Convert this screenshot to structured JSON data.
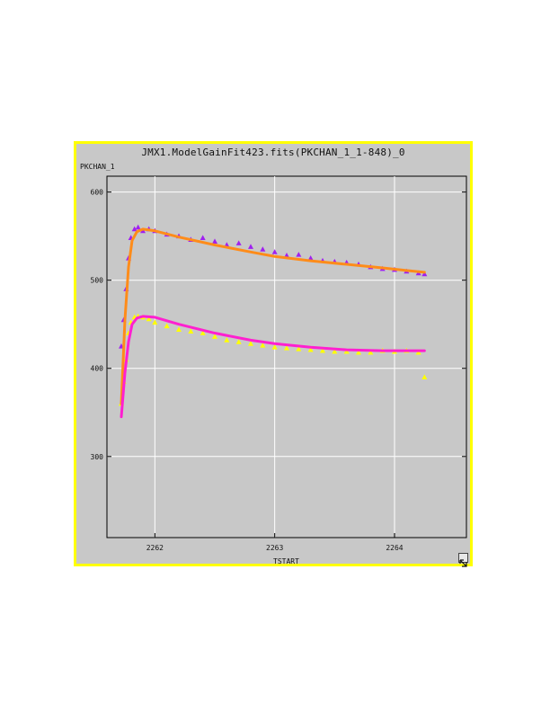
{
  "window": {
    "title": "JMX1.ModelGainFit423.fits(PKCHAN_1_1-848)_0",
    "resize_icon": "resize-corner-icon"
  },
  "chart_data": {
    "type": "scatter",
    "title": "JMX1.ModelGainFit423.fits(PKCHAN_1_1-848)_0",
    "xlabel": "TSTART",
    "ylabel": "PKCHAN_1",
    "xlim": [
      2261.6,
      2264.6
    ],
    "ylim": [
      208,
      618
    ],
    "xticks": [
      2262,
      2263,
      2264
    ],
    "yticks": [
      300,
      400,
      500,
      600
    ],
    "grid": true,
    "legend": "none",
    "series": [
      {
        "kind": "scatter",
        "marker": "triangle",
        "color": "#a020f0",
        "x": [
          2261.72,
          2261.74,
          2261.76,
          2261.78,
          2261.8,
          2261.83,
          2261.86,
          2261.9,
          2261.95,
          2262.0,
          2262.1,
          2262.2,
          2262.3,
          2262.4,
          2262.5,
          2262.6,
          2262.7,
          2262.8,
          2262.9,
          2263.0,
          2263.1,
          2263.2,
          2263.3,
          2263.4,
          2263.5,
          2263.6,
          2263.7,
          2263.8,
          2263.9,
          2264.0,
          2264.1,
          2264.2,
          2264.25
        ],
        "y": [
          425,
          455,
          490,
          525,
          548,
          558,
          560,
          556,
          558,
          556,
          552,
          550,
          546,
          548,
          544,
          540,
          542,
          538,
          535,
          532,
          528,
          529,
          525,
          522,
          521,
          520,
          518,
          515,
          513,
          512,
          510,
          508,
          507
        ]
      },
      {
        "kind": "scatter",
        "marker": "triangle",
        "color": "#ffff00",
        "x": [
          2261.72,
          2261.74,
          2261.76,
          2261.78,
          2261.8,
          2261.83,
          2261.86,
          2261.9,
          2261.95,
          2262.0,
          2262.1,
          2262.2,
          2262.3,
          2262.4,
          2262.5,
          2262.6,
          2262.7,
          2262.8,
          2262.9,
          2263.0,
          2263.1,
          2263.2,
          2263.3,
          2263.4,
          2263.5,
          2263.6,
          2263.7,
          2263.8,
          2263.9,
          2264.0,
          2264.1,
          2264.2,
          2264.25
        ],
        "y": [
          360,
          385,
          410,
          440,
          452,
          458,
          459,
          458,
          456,
          452,
          448,
          444,
          442,
          440,
          436,
          432,
          430,
          428,
          426,
          424,
          423,
          422,
          421,
          420,
          419,
          419,
          418,
          418,
          420,
          419,
          420,
          418,
          390
        ]
      },
      {
        "kind": "line",
        "color": "#ff8c1a",
        "width": 3,
        "x": [
          2261.72,
          2261.75,
          2261.78,
          2261.81,
          2261.85,
          2261.9,
          2262.0,
          2262.2,
          2262.5,
          2262.8,
          2263.0,
          2263.3,
          2263.6,
          2263.9,
          2264.1,
          2264.25
        ],
        "y": [
          360,
          455,
          515,
          545,
          555,
          558,
          556,
          549,
          540,
          532,
          527,
          522,
          518,
          514,
          511,
          509
        ]
      },
      {
        "kind": "line",
        "color": "#ff20d0",
        "width": 3,
        "x": [
          2261.72,
          2261.75,
          2261.78,
          2261.81,
          2261.85,
          2261.9,
          2262.0,
          2262.2,
          2262.5,
          2262.8,
          2263.0,
          2263.3,
          2263.6,
          2263.9,
          2264.1,
          2264.25
        ],
        "y": [
          345,
          395,
          430,
          450,
          457,
          459,
          458,
          450,
          440,
          432,
          428,
          424,
          421,
          420,
          420,
          420
        ]
      }
    ]
  }
}
